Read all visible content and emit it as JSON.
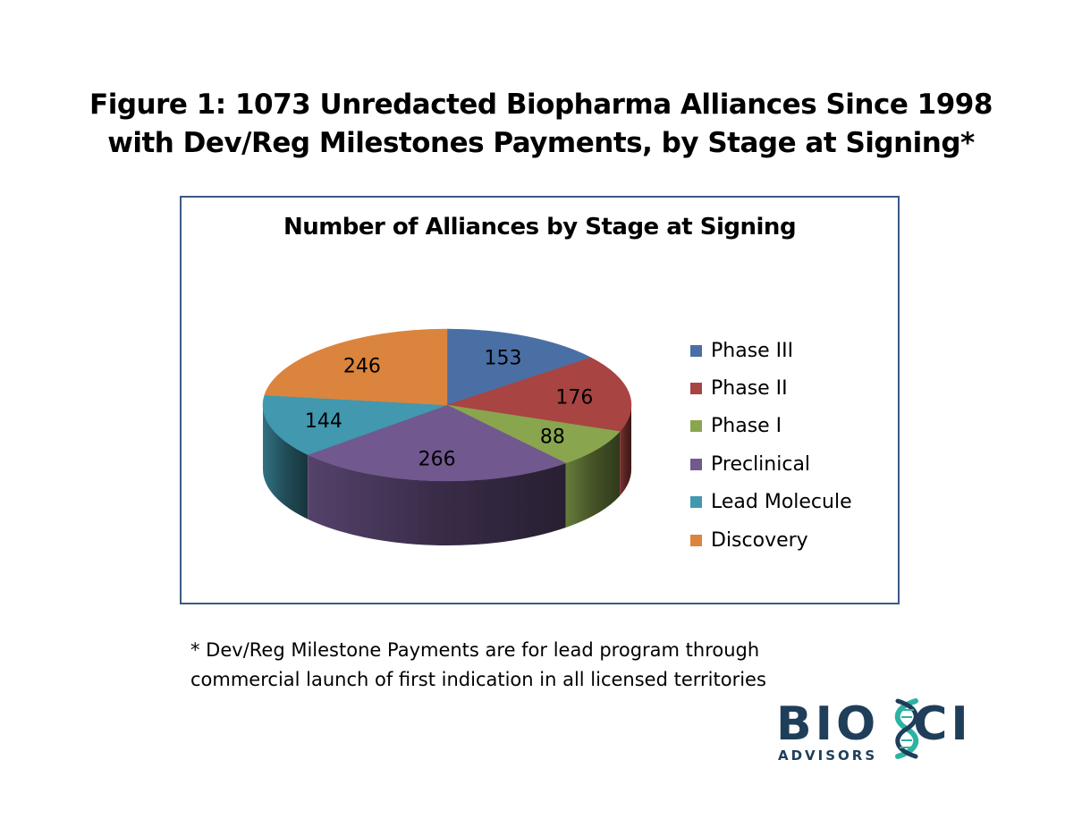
{
  "figure": {
    "title_line1": "Figure 1:  1073 Unredacted Biopharma Alliances Since 1998",
    "title_line2": "with Dev/Reg Milestones Payments, by Stage at Signing*"
  },
  "footnote": {
    "line1": "* Dev/Reg Milestone Payments are for lead program through",
    "line2": "commercial launch of first indication in all licensed territories"
  },
  "logo": {
    "main_text": "BIOSCI",
    "sub_text": "ADVISORS",
    "colors": {
      "text": "#1f3e5a",
      "helix": "#2bb3a3"
    }
  },
  "chart_data": {
    "type": "pie",
    "style": "3d",
    "title": "Number of Alliances by Stage at Signing",
    "legend_position": "right",
    "categories": [
      "Phase III",
      "Phase II",
      "Phase I",
      "Preclinical",
      "Lead Molecule",
      "Discovery"
    ],
    "values": [
      153,
      176,
      88,
      266,
      144,
      246
    ],
    "colors": [
      "#4a6fa5",
      "#a84442",
      "#89a54e",
      "#71588f",
      "#4198af",
      "#db843d"
    ]
  }
}
